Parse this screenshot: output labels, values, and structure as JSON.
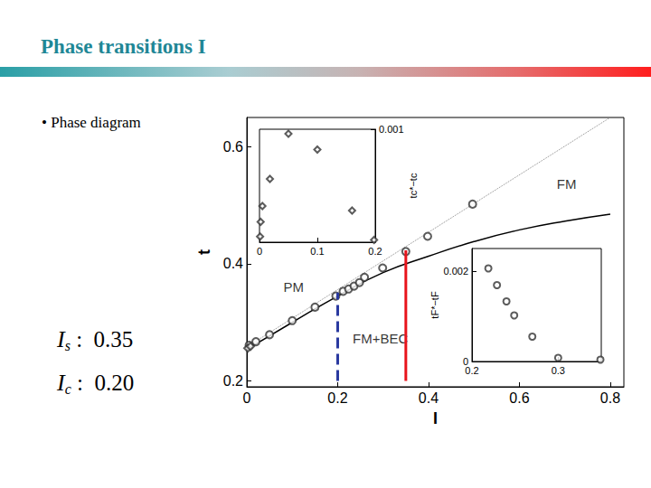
{
  "title": "Phase transitions I",
  "bullet": "• Phase diagram",
  "chart_data": [
    {
      "type": "scatter",
      "xlabel": "I",
      "ylabel": "t",
      "xlim": [
        0,
        0.83
      ],
      "ylim": [
        0.19,
        0.65
      ],
      "xticks": [
        0,
        0.2,
        0.4,
        0.6,
        0.8
      ],
      "yticks": [
        0.2,
        0.4,
        0.6
      ],
      "grid": false,
      "series": [
        {
          "type": "scatter",
          "marker": "circle",
          "color": "#333333",
          "x": [
            0.005,
            0.02,
            0.05,
            0.1,
            0.15,
            0.196,
            0.212,
            0.224,
            0.236,
            0.248,
            0.259,
            0.299,
            0.35,
            0.398,
            0.497
          ],
          "values": [
            0.261,
            0.267,
            0.279,
            0.303,
            0.326,
            0.345,
            0.353,
            0.357,
            0.362,
            0.368,
            0.377,
            0.393,
            0.421,
            0.447,
            0.502
          ]
        },
        {
          "type": "scatter",
          "marker": "diamond",
          "color": "#333333",
          "x": [
            0.002,
            0.008
          ],
          "values": [
            0.256,
            0.259
          ]
        },
        {
          "type": "line",
          "line_style": "dotted",
          "color": "#888888",
          "x": [
            0,
            0.8
          ],
          "values": [
            0.258,
            0.65
          ]
        },
        {
          "type": "line",
          "line_style": "solid",
          "color": "#000000",
          "x": [
            0,
            0.1,
            0.2,
            0.3,
            0.4,
            0.5,
            0.6,
            0.7,
            0.8
          ],
          "values": [
            0.254,
            0.3,
            0.345,
            0.385,
            0.413,
            0.438,
            0.458,
            0.473,
            0.485
          ]
        }
      ],
      "annotations": [
        {
          "text": "FM",
          "x": 0.704,
          "y": 0.537
        },
        {
          "text": "PM",
          "x": 0.103,
          "y": 0.36
        },
        {
          "text": "FM+BEC",
          "x": 0.294,
          "y": 0.272
        }
      ],
      "markers": [
        {
          "symbol": "I",
          "subscript": "s",
          "separator": ":",
          "value": 0.35,
          "label": "0.35",
          "color": "#e8141c",
          "line_style": "solid",
          "t_range": [
            0.2,
            0.423
          ]
        },
        {
          "symbol": "I",
          "subscript": "c",
          "separator": ":",
          "value": 0.2,
          "label": "0.20",
          "color": "#2a3aa0",
          "line_style": "dashed",
          "t_range": [
            0.2,
            0.351
          ]
        }
      ]
    },
    {
      "type": "scatter",
      "ylabel": "tc*−tc",
      "xlim": [
        0,
        0.2
      ],
      "ylim": [
        0,
        0.001
      ],
      "xticks": [
        0,
        0.1,
        0.2
      ],
      "yticks": [
        0.001
      ],
      "series": [
        {
          "marker": "diamond",
          "color": "#333333",
          "x": [
            0.001,
            0.002,
            0.005,
            0.018,
            0.05,
            0.1,
            0.16,
            0.198
          ],
          "values": [
            5e-05,
            0.00018,
            0.00032,
            0.00056,
            0.00096,
            0.00082,
            0.00028,
            2e-05
          ]
        }
      ]
    },
    {
      "type": "scatter",
      "ylabel": "tF*−tF",
      "xlim": [
        0.2,
        0.35
      ],
      "ylim": [
        0,
        0.0025
      ],
      "xticks": [
        0.2,
        0.3
      ],
      "yticks": [
        0,
        0.002
      ],
      "series": [
        {
          "marker": "circle",
          "color": "#333333",
          "x": [
            0.219,
            0.229,
            0.24,
            0.249,
            0.27,
            0.3,
            0.349
          ],
          "values": [
            0.00206,
            0.00169,
            0.00133,
            0.00102,
            0.00055,
            8e-05,
            4e-05
          ]
        }
      ]
    }
  ]
}
